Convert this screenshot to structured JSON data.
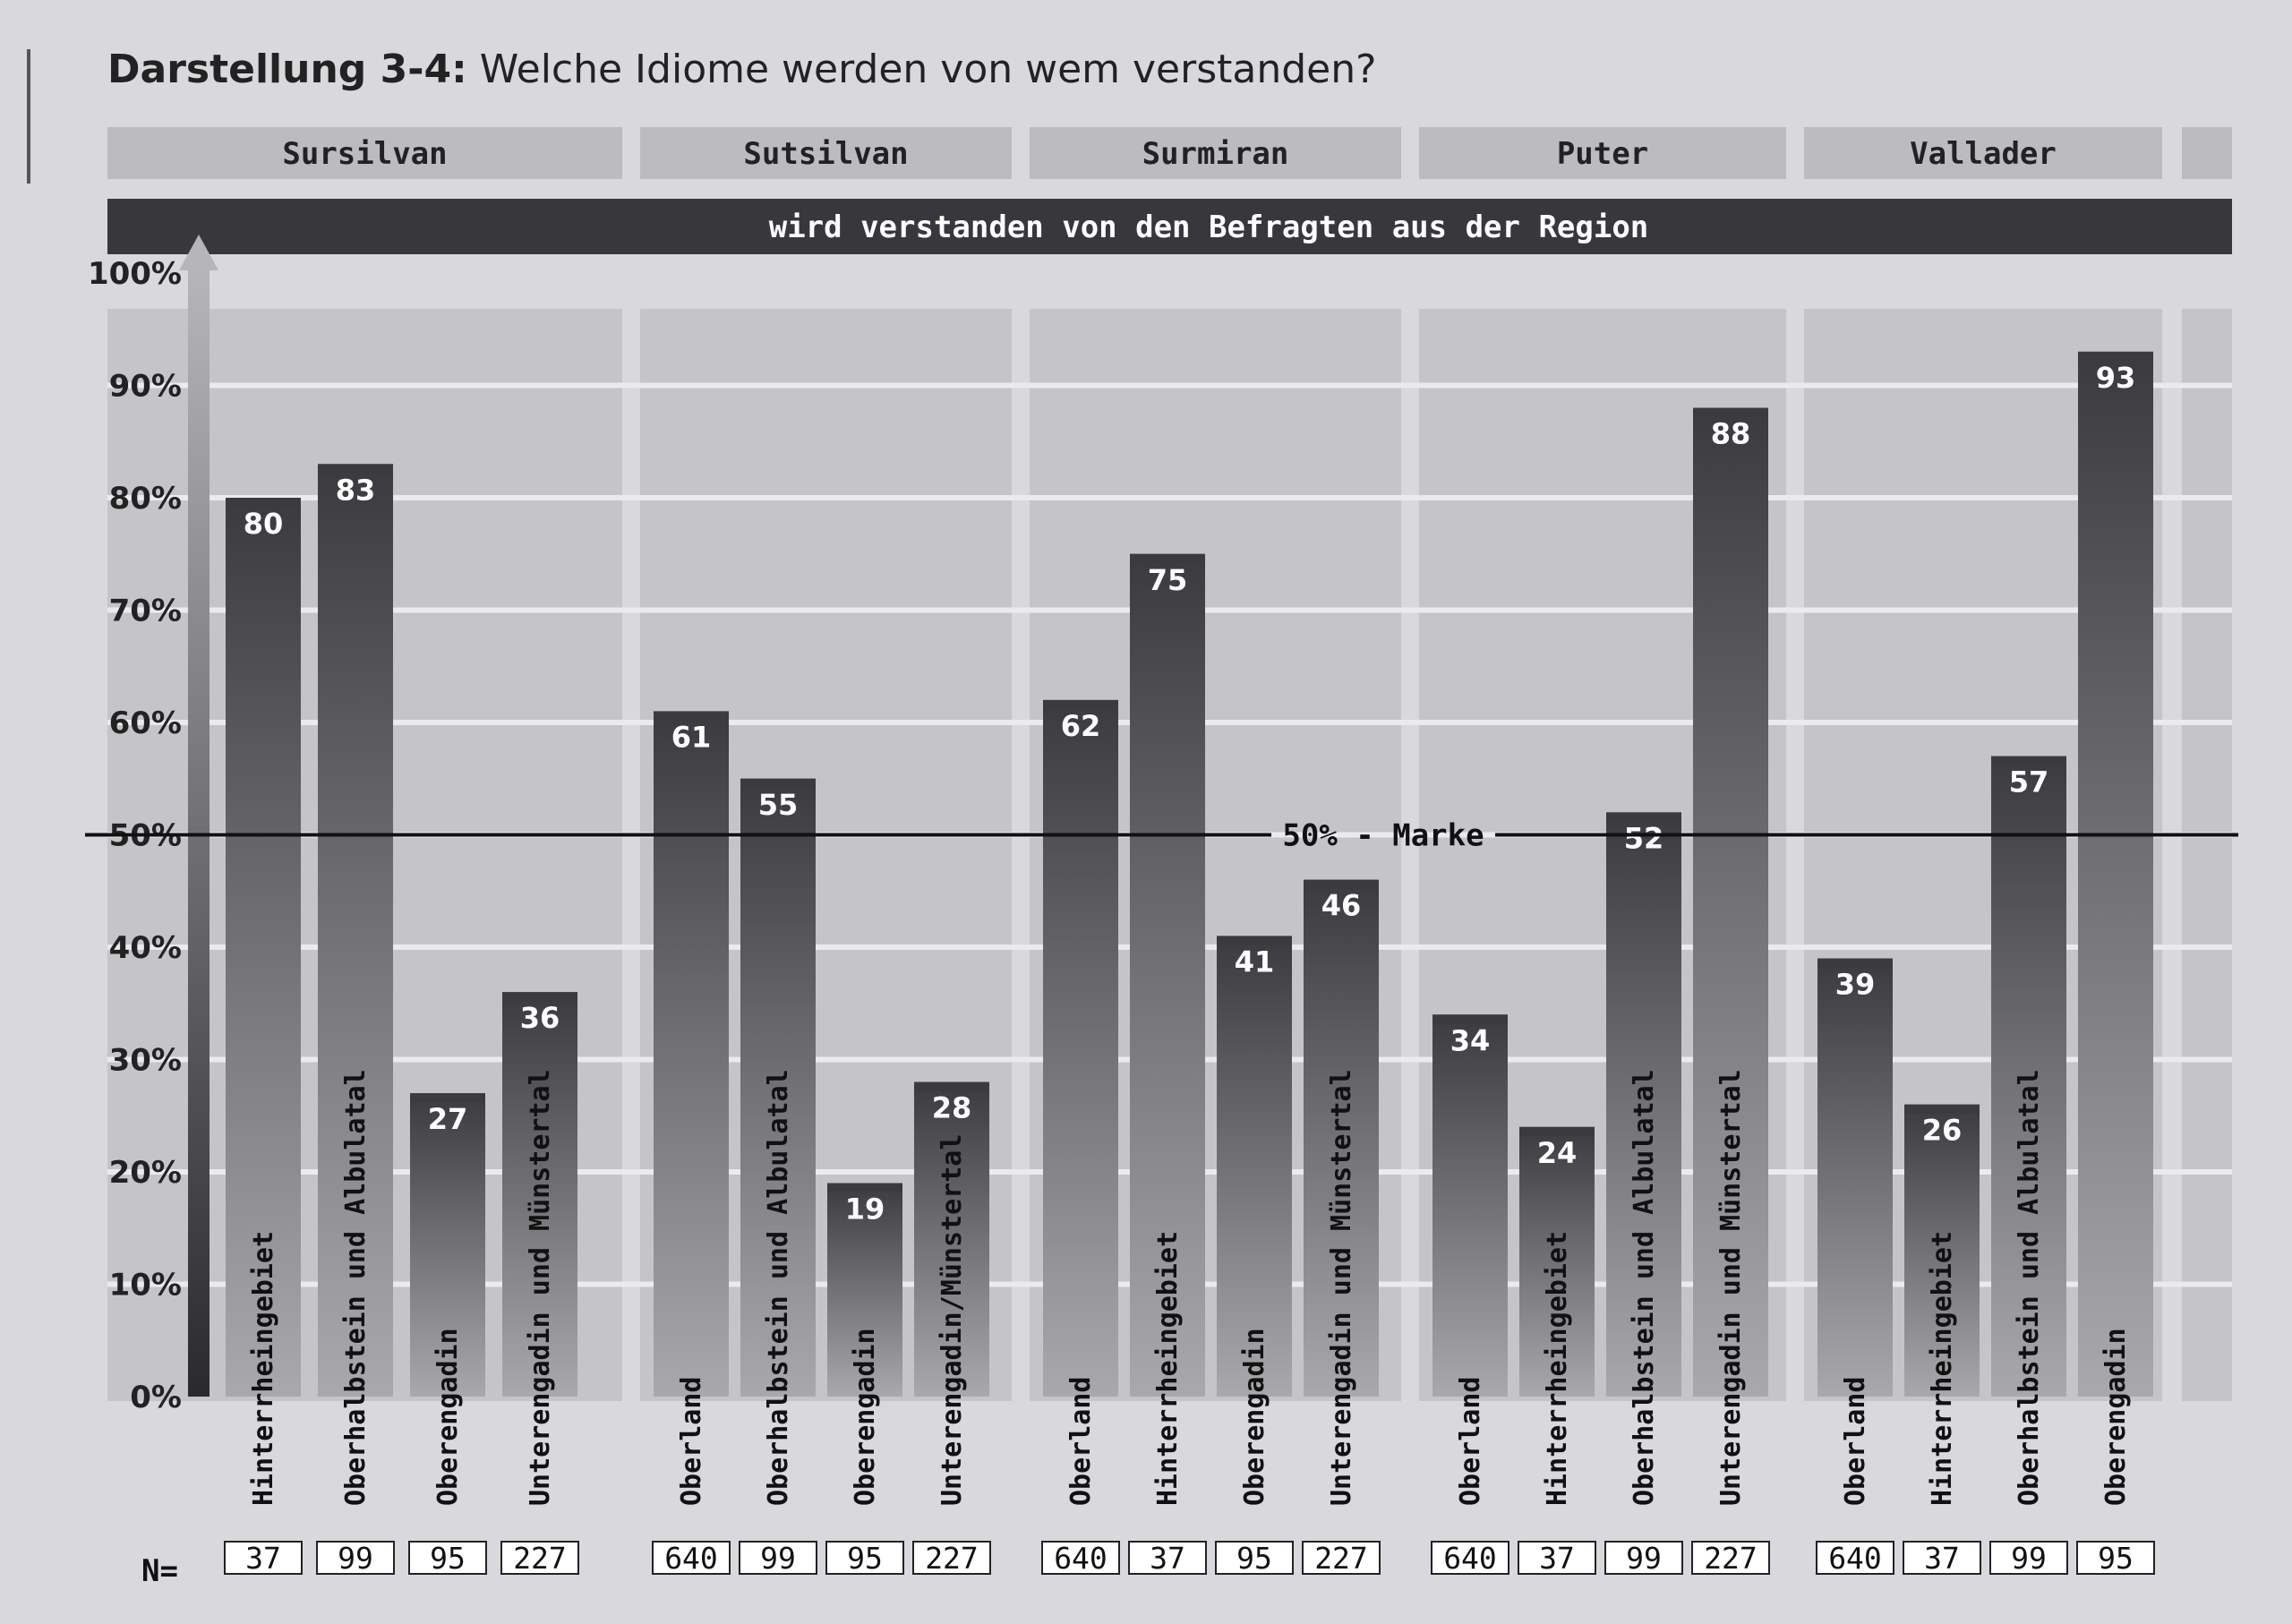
{
  "title_prefix": "Darstellung 3-4:",
  "title_text": "Welche Idiome werden von wem verstanden?",
  "colors": {
    "bar_top": "#3a3a3f",
    "bar_bottom": "#a9a9ad",
    "banner": "#37373c",
    "panel": "#c5c5c9",
    "header": "#bcbcc0"
  },
  "chart_data": {
    "type": "bar",
    "title": "Welche Idiome werden von wem verstanden?",
    "banner": "wird verstanden von den Befragten aus der Region",
    "y_ticks": [
      "0%",
      "10%",
      "20%",
      "30%",
      "40%",
      "50%",
      "60%",
      "70%",
      "80%",
      "90%",
      "100%"
    ],
    "ylim": [
      0,
      100
    ],
    "reference_line": {
      "value": 50,
      "label": "50% - Marke"
    },
    "n_prefix": "N=",
    "groups": [
      {
        "name": "Sursilvan",
        "categories": [
          "Hinterrheingebiet",
          "Oberhalbstein und Albulatal",
          "Oberengadin",
          "Unterengadin und Münstertal"
        ],
        "values": [
          80,
          83,
          27,
          36
        ],
        "n": [
          "37",
          "99",
          "95",
          "227"
        ]
      },
      {
        "name": "Sutsilvan",
        "categories": [
          "Oberland",
          "Oberhalbstein und Albulatal",
          "Oberengadin",
          "Unterengadin/Münstertal"
        ],
        "values": [
          61,
          55,
          19,
          28
        ],
        "n": [
          "640",
          "99",
          "95",
          "227"
        ]
      },
      {
        "name": "Surmiran",
        "categories": [
          "Oberland",
          "Hinterrheingebiet",
          "Oberengadin",
          "Unterengadin und Münstertal"
        ],
        "values": [
          62,
          75,
          41,
          46
        ],
        "n": [
          "640",
          "37",
          "95",
          "227"
        ]
      },
      {
        "name": "Puter",
        "categories": [
          "Oberland",
          "Hinterrheingebiet",
          "Oberhalbstein und Albulatal",
          "Unterengadin und Münstertal"
        ],
        "values": [
          34,
          24,
          52,
          88
        ],
        "n": [
          "640",
          "37",
          "99",
          "227"
        ]
      },
      {
        "name": "Vallader",
        "categories": [
          "Oberland",
          "Hinterrheingebiet",
          "Oberhalbstein und Albulatal",
          "Oberengadin"
        ],
        "values": [
          39,
          26,
          57,
          93
        ],
        "n": [
          "640",
          "37",
          "99",
          "95"
        ]
      }
    ]
  }
}
